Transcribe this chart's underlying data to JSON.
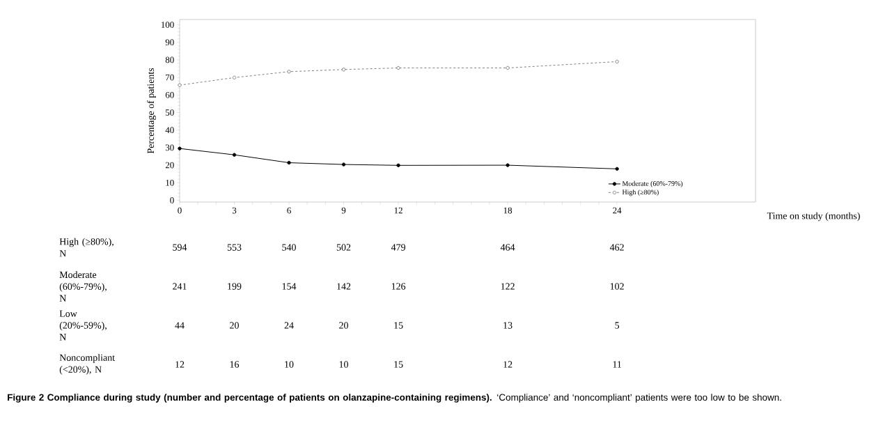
{
  "chart_data": {
    "type": "line",
    "title": "**Figure 2 Compliance during study (number and percentage of patients on olanzapine-containing regimens).** ‘Compliance’ and ‘noncompliant’ patients were too low to be shown.",
    "xlabel": "Time on study (months)",
    "ylabel": "Percentage of patients",
    "x": [
      0,
      3,
      6,
      9,
      12,
      18,
      24
    ],
    "series": [
      {
        "name": "Moderate (60%-79%)",
        "color": "#000000",
        "line_style": "solid",
        "values": [
          29.5,
          25.9,
          21.4,
          20.4,
          19.9,
          20.0,
          17.9
        ]
      },
      {
        "name": "High (≥80%)",
        "color": "#808080",
        "line_style": "dashed",
        "values": [
          65.6,
          69.9,
          73.3,
          74.5,
          75.4,
          75.4,
          79.0
        ]
      }
    ],
    "xlim": [
      0,
      31.6
    ],
    "xticks": [
      0,
      {
        "value": 1,
        "label": null
      },
      {
        "value": 2,
        "label": null
      },
      3,
      {
        "value": 4,
        "label": null
      },
      {
        "value": 5,
        "label": null
      },
      6,
      {
        "value": 7,
        "label": null
      },
      {
        "value": 8,
        "label": null
      },
      9,
      {
        "value": 10,
        "label": null
      },
      {
        "value": 11,
        "label": null
      },
      12,
      {
        "value": 13,
        "label": null
      },
      {
        "value": 14,
        "label": null
      },
      {
        "value": 15,
        "label": null
      },
      {
        "value": 16,
        "label": null
      },
      {
        "value": 17,
        "label": null
      },
      18,
      {
        "value": 19,
        "label": null
      },
      {
        "value": 20,
        "label": null
      },
      {
        "value": 21,
        "label": null
      },
      {
        "value": 22,
        "label": null
      },
      {
        "value": 23,
        "label": null
      },
      24
    ],
    "ylim": [
      -1,
      103
    ],
    "yticks": [
      0,
      10,
      20,
      30,
      40,
      50,
      60,
      70,
      80,
      90,
      100
    ],
    "grid": false,
    "legend": "bottom right",
    "marker": "circle",
    "annotations": [
      "High (≥80%), N",
      "594",
      "553",
      "540",
      "502",
      "479",
      "464",
      "462",
      "Moderate (60%-79%), N",
      "241",
      "199",
      "154",
      "142",
      "126",
      "122",
      "102",
      "Low (20%-59%), N",
      "44",
      "20",
      "24",
      "20",
      "15",
      "13",
      "5",
      "Noncompliant (<20%), N",
      "12",
      "16",
      "10",
      "10",
      "15",
      "12",
      "11"
    ]
  }
}
